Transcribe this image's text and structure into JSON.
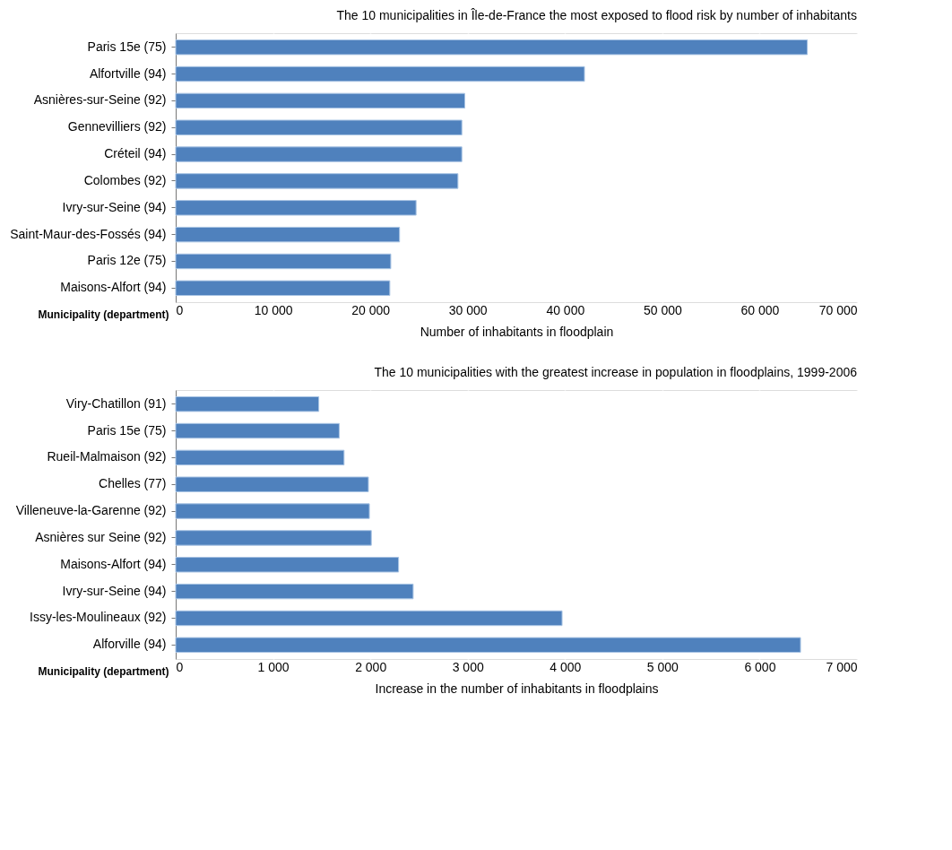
{
  "chart_data": [
    {
      "type": "bar",
      "orientation": "horizontal",
      "title": "The 10 municipalities in Île-de-France the most exposed to flood risk by number of inhabitants",
      "xlabel": "Number of inhabitants in floodplain",
      "ylabel": "Municipality (department)",
      "categories": [
        "Paris 15e (75)",
        "Alfortville (94)",
        "Asnières-sur-Seine (92)",
        "Gennevilliers (92)",
        "Créteil (94)",
        "Colombes (92)",
        "Ivry-sur-Seine (94)",
        "Saint-Maur-des-Fossés (94)",
        "Paris 12e (75)",
        "Maisons-Alfort (94)"
      ],
      "series": [
        {
          "color": "#4f81bd",
          "values": [
            64900,
            42000,
            29700,
            29400,
            29400,
            29000,
            24700,
            23000,
            22100,
            22000
          ]
        }
      ],
      "xlim": [
        0,
        70000
      ],
      "xticks": [
        0,
        {
          "value": 10000,
          "label": "10 000"
        },
        {
          "value": 20000,
          "label": "20 000"
        },
        {
          "value": 30000,
          "label": "30 000"
        },
        {
          "value": 40000,
          "label": "40 000"
        },
        {
          "value": 50000,
          "label": "50 000"
        },
        {
          "value": 60000,
          "label": "60 000"
        },
        {
          "value": 70000,
          "label": "70 000"
        }
      ],
      "grid": "x"
    },
    {
      "type": "bar",
      "orientation": "horizontal",
      "title": "The 10 municipalities with the greatest increase in population in floodplains, 1999-2006",
      "xlabel": "Increase in the number of inhabitants in floodplains",
      "ylabel": "Municipality (department)",
      "categories": [
        "Viry-Chatillon (91)",
        "Paris 15e (75)",
        "Rueil-Malmaison (92)",
        "Chelles (77)",
        "Villeneuve-la-Garenne (92)",
        "Asnières sur Seine (92)",
        "Maisons-Alfort (94)",
        "Ivry-sur-Seine (94)",
        "Issy-les-Moulineaux (92)",
        "Alforville (94)"
      ],
      "series": [
        {
          "color": "#4f81bd",
          "values": [
            1470,
            1680,
            1730,
            1980,
            1990,
            2010,
            2290,
            2440,
            3970,
            6420
          ]
        }
      ],
      "xlim": [
        0,
        7000
      ],
      "xticks": [
        0,
        {
          "value": 1000,
          "label": "1 000"
        },
        {
          "value": 2000,
          "label": "2 000"
        },
        {
          "value": 3000,
          "label": "3 000"
        },
        {
          "value": 4000,
          "label": "4 000"
        },
        {
          "value": 5000,
          "label": "5 000"
        },
        {
          "value": 6000,
          "label": "6 000"
        },
        {
          "value": 7000,
          "label": "7 000"
        }
      ],
      "grid": "x"
    }
  ]
}
